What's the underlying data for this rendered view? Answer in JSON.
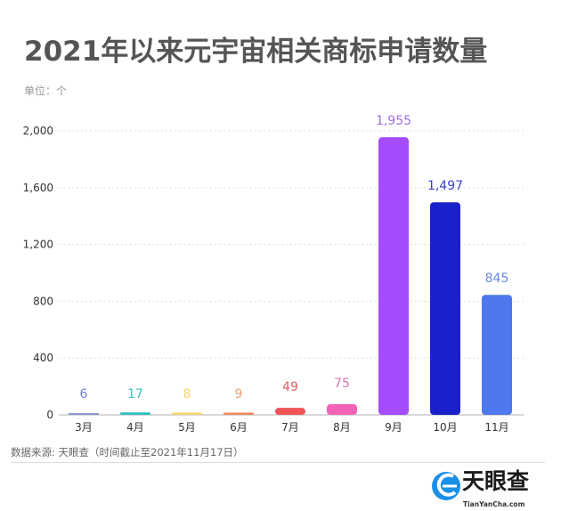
{
  "chart_data": {
    "type": "bar",
    "title": "2021年以来元宇宙相关商标申请数量",
    "unit_label": "单位：个",
    "categories": [
      "3月",
      "4月",
      "5月",
      "6月",
      "7月",
      "8月",
      "9月",
      "10月",
      "11月"
    ],
    "values": [
      6,
      17,
      8,
      9,
      49,
      75,
      1955,
      1497,
      845
    ],
    "value_labels": [
      "6",
      "17",
      "8",
      "9",
      "49",
      "75",
      "1,955",
      "1,497",
      "845"
    ],
    "colors": [
      "#6f80d8",
      "#2bc0bf",
      "#f6d46c",
      "#f08a5c",
      "#f05454",
      "#f262b6",
      "#a64cff",
      "#1a20cc",
      "#4f78ee"
    ],
    "label_colors": [
      "#6f80d8",
      "#3cc0c0",
      "#f6d070",
      "#f0a070",
      "#e06060",
      "#e070b8",
      "#a070e0",
      "#3a40c8",
      "#6a88e8"
    ],
    "ylim": [
      0,
      2000
    ],
    "yticks": [
      0,
      400,
      800,
      1200,
      1600,
      2000
    ],
    "ytick_labels": [
      "0",
      "400",
      "800",
      "1,200",
      "1,600",
      "2,000"
    ],
    "grid": true,
    "xlabel": "",
    "ylabel": ""
  },
  "footer": {
    "source": "数据来源: 天眼查（时间截止至2021年11月17日）"
  },
  "logo": {
    "name": "天眼查",
    "site": "TianYanCha.com"
  }
}
